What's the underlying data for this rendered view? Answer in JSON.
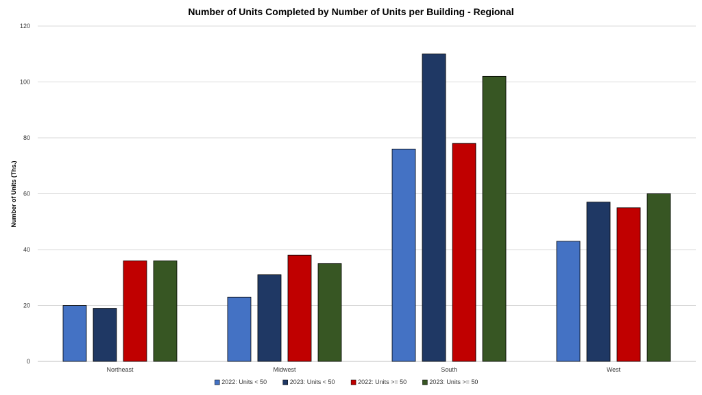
{
  "chart_data": {
    "type": "bar",
    "title": "Number of Units Completed by Number of Units per Building - Regional",
    "xlabel": "",
    "ylabel": "Number of Units (Ths.)",
    "ylim": [
      0,
      120
    ],
    "yticks": [
      0,
      20,
      40,
      60,
      80,
      100,
      120
    ],
    "grid": true,
    "legend_position": "bottom",
    "categories": [
      "Northeast",
      "Midwest",
      "South",
      "West"
    ],
    "series": [
      {
        "name": "2022: Units < 50",
        "color": "#4472C4",
        "values": [
          20,
          23,
          76,
          43
        ]
      },
      {
        "name": "2023: Units < 50",
        "color": "#1F3864",
        "values": [
          19,
          31,
          110,
          57
        ]
      },
      {
        "name": "2022: Units >= 50",
        "color": "#C00000",
        "values": [
          36,
          38,
          78,
          55
        ]
      },
      {
        "name": "2023: Units >= 50",
        "color": "#375623",
        "values": [
          36,
          35,
          102,
          60
        ]
      }
    ]
  }
}
